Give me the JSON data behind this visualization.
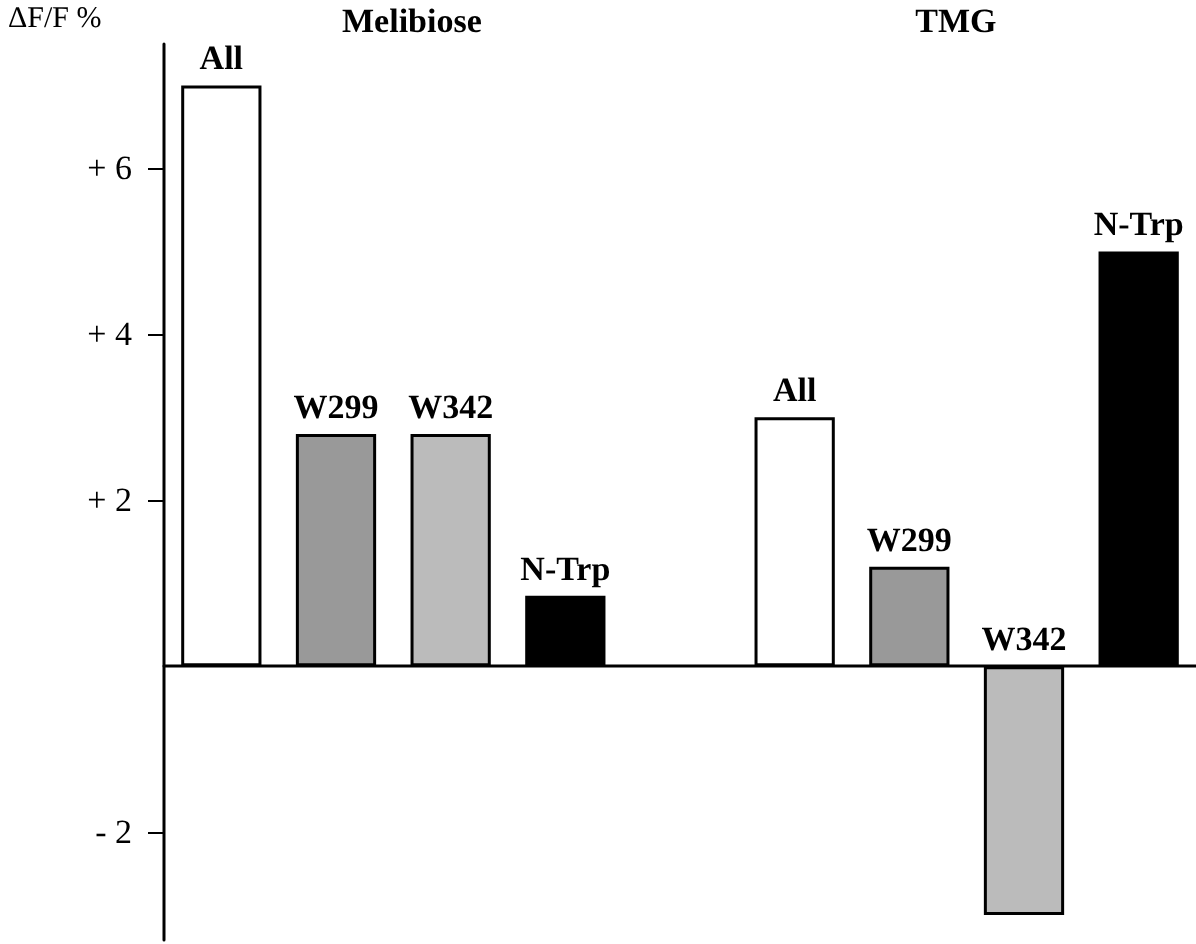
{
  "chart_data": {
    "type": "bar",
    "ylabel": "ΔF/F %",
    "annotations": [
      "Melibiose",
      "TMG"
    ],
    "categories": [
      "All",
      "W299",
      "W342",
      "N-Trp",
      null,
      "All",
      "W299",
      "W342",
      "N-Trp"
    ],
    "values": [
      7.0,
      2.8,
      2.8,
      0.85,
      null,
      3.0,
      1.2,
      -3.0,
      5.0
    ],
    "colors": [
      "#ffffff",
      "#999999",
      "#bbbbbb",
      "#000000",
      "#ffffff",
      "#ffffff",
      "#999999",
      "#bbbbbb",
      "#000000"
    ],
    "ylim": [
      -3.3,
      7.5
    ],
    "yticks": [
      {
        "value": -2,
        "label": "- 2"
      },
      {
        "value": 2,
        "label": "+ 2"
      },
      {
        "value": 4,
        "label": "+ 4"
      },
      {
        "value": 6,
        "label": "+ 6"
      }
    ],
    "tick_labels": "y"
  }
}
